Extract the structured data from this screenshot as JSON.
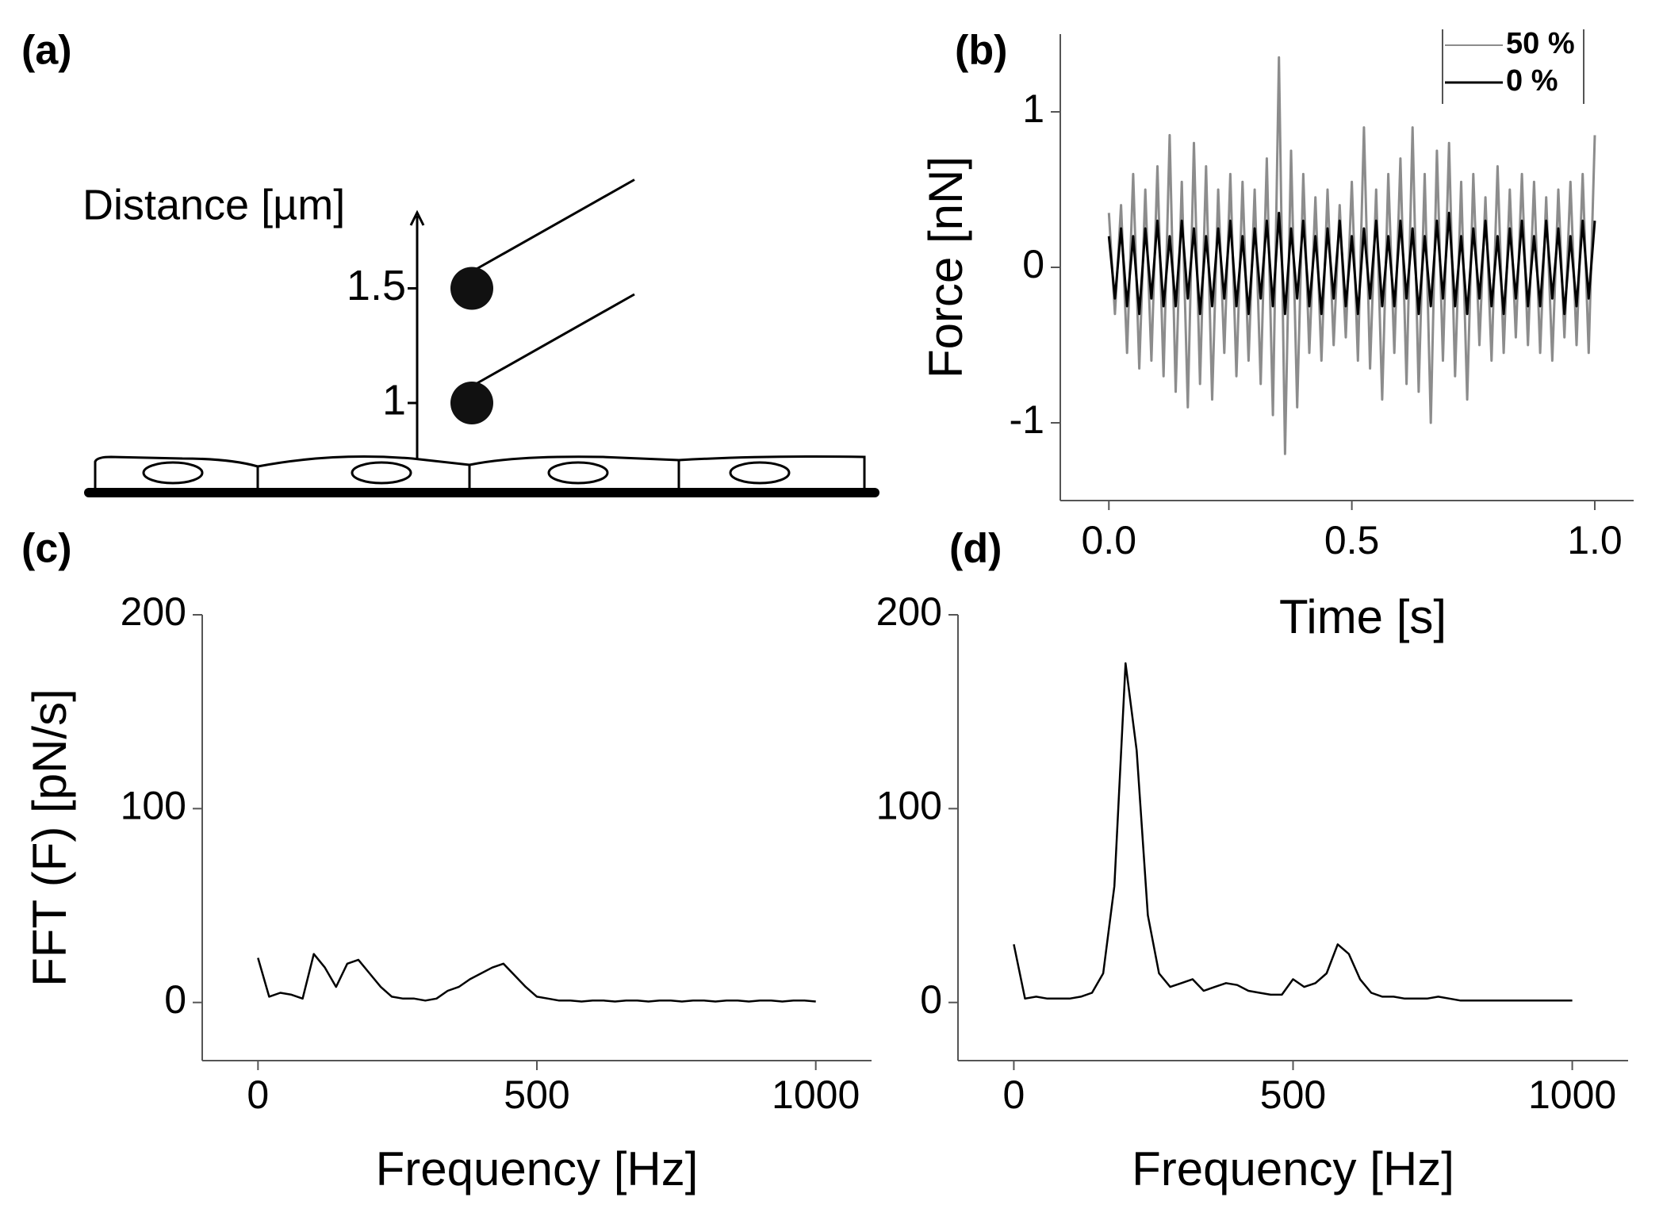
{
  "diagram": {
    "panel_label": "(a)",
    "axis_label": "Distance [µm]",
    "ticks": [
      1,
      1.5
    ]
  },
  "chart_data": [
    {
      "type": "line",
      "panel_label": "(b)",
      "xlabel": "Time [s]",
      "ylabel": "Force [nN]",
      "xlim": [
        -0.1,
        1.08
      ],
      "ylim": [
        -1.5,
        1.5
      ],
      "xticks": [
        {
          "value": 0,
          "label": "0.0"
        },
        {
          "value": 0.5,
          "label": "0.5"
        },
        {
          "value": 1,
          "label": "1.0"
        }
      ],
      "yticks": [
        -1,
        0,
        1
      ],
      "legend": "upper right",
      "x": [
        0,
        0.0125,
        0.025,
        0.0375,
        0.05,
        0.0625,
        0.075,
        0.0875,
        0.1,
        0.1125,
        0.125,
        0.1375,
        0.15,
        0.1625,
        0.175,
        0.1875,
        0.2,
        0.2125,
        0.225,
        0.2375,
        0.25,
        0.2625,
        0.275,
        0.2875,
        0.3,
        0.3125,
        0.325,
        0.3375,
        0.35,
        0.3625,
        0.375,
        0.3875,
        0.4,
        0.4125,
        0.425,
        0.4375,
        0.45,
        0.4625,
        0.475,
        0.4875,
        0.5,
        0.5125,
        0.525,
        0.5375,
        0.55,
        0.5625,
        0.575,
        0.5875,
        0.6,
        0.6125,
        0.625,
        0.6375,
        0.65,
        0.6625,
        0.675,
        0.6875,
        0.7,
        0.7125,
        0.725,
        0.7375,
        0.75,
        0.7625,
        0.775,
        0.7875,
        0.8,
        0.8125,
        0.825,
        0.8375,
        0.85,
        0.8625,
        0.875,
        0.8875,
        0.9,
        0.9125,
        0.925,
        0.9375,
        0.95,
        0.9625,
        0.975,
        0.9875,
        1
      ],
      "series": [
        {
          "name": "50 %",
          "color": "#8c8c8c",
          "values": [
            0.35,
            -0.3,
            0.4,
            -0.55,
            0.6,
            -0.65,
            0.5,
            -0.6,
            0.65,
            -0.7,
            0.85,
            -0.8,
            0.55,
            -0.9,
            0.8,
            -0.75,
            0.65,
            -0.85,
            0.5,
            -0.55,
            0.6,
            -0.7,
            0.55,
            -0.6,
            0.5,
            -0.75,
            0.7,
            -0.95,
            1.35,
            -1.2,
            0.75,
            -0.9,
            0.6,
            -0.55,
            0.45,
            -0.6,
            0.5,
            -0.5,
            0.4,
            -0.45,
            0.55,
            -0.6,
            0.9,
            -0.65,
            0.5,
            -0.85,
            0.6,
            -0.55,
            0.7,
            -0.75,
            0.9,
            -0.8,
            0.6,
            -1.0,
            0.75,
            -0.6,
            0.8,
            -0.7,
            0.55,
            -0.85,
            0.6,
            -0.5,
            0.45,
            -0.6,
            0.65,
            -0.55,
            0.5,
            -0.45,
            0.6,
            -0.5,
            0.55,
            -0.55,
            0.45,
            -0.6,
            0.5,
            -0.45,
            0.55,
            -0.5,
            0.6,
            -0.55,
            0.85
          ]
        },
        {
          "name": "0 %",
          "color": "#000000",
          "values": [
            0.2,
            -0.2,
            0.25,
            -0.25,
            0.2,
            -0.3,
            0.25,
            -0.2,
            0.3,
            -0.25,
            0.2,
            -0.25,
            0.3,
            -0.2,
            0.25,
            -0.3,
            0.2,
            -0.25,
            0.25,
            -0.2,
            0.3,
            -0.25,
            0.2,
            -0.3,
            0.25,
            -0.2,
            0.3,
            -0.25,
            0.35,
            -0.3,
            0.25,
            -0.2,
            0.3,
            -0.25,
            0.2,
            -0.3,
            0.25,
            -0.2,
            0.3,
            -0.25,
            0.2,
            -0.3,
            0.25,
            -0.2,
            0.3,
            -0.25,
            0.2,
            -0.25,
            0.3,
            -0.2,
            0.25,
            -0.3,
            0.2,
            -0.25,
            0.3,
            -0.2,
            0.35,
            -0.25,
            0.2,
            -0.3,
            0.25,
            -0.2,
            0.3,
            -0.25,
            0.2,
            -0.3,
            0.25,
            -0.2,
            0.3,
            -0.25,
            0.2,
            -0.25,
            0.3,
            -0.2,
            0.25,
            -0.3,
            0.2,
            -0.25,
            0.3,
            -0.2,
            0.3
          ]
        }
      ]
    },
    {
      "type": "line",
      "panel_label": "(c)",
      "xlabel": "Frequency [Hz]",
      "ylabel": "FFT (F) [pN/s]",
      "xlim": [
        -100,
        1100
      ],
      "ylim": [
        -30,
        200
      ],
      "xticks": [
        0,
        500,
        1000
      ],
      "yticks": [
        0,
        100,
        200
      ],
      "x": [
        0,
        20,
        40,
        60,
        80,
        100,
        120,
        140,
        160,
        180,
        200,
        220,
        240,
        260,
        280,
        300,
        320,
        340,
        360,
        380,
        400,
        420,
        440,
        460,
        480,
        500,
        520,
        540,
        560,
        580,
        600,
        620,
        640,
        660,
        680,
        700,
        720,
        740,
        760,
        780,
        800,
        820,
        840,
        860,
        880,
        900,
        920,
        940,
        960,
        980,
        1000
      ],
      "series": [
        {
          "color": "#000000",
          "values": [
            23,
            3,
            5,
            4,
            2,
            25,
            18,
            8,
            20,
            22,
            15,
            8,
            3,
            2,
            2,
            1,
            2,
            6,
            8,
            12,
            15,
            18,
            20,
            14,
            8,
            3,
            2,
            1,
            1,
            0.5,
            1,
            1,
            0.5,
            1,
            1,
            0.5,
            1,
            1,
            0.5,
            1,
            1,
            0.5,
            1,
            1,
            0.5,
            1,
            1,
            0.5,
            1,
            1,
            0.5
          ]
        }
      ]
    },
    {
      "type": "line",
      "panel_label": "(d)",
      "xlabel": "Frequency [Hz]",
      "xlim": [
        -100,
        1100
      ],
      "ylim": [
        -30,
        200
      ],
      "xticks": [
        0,
        500,
        1000
      ],
      "yticks": [
        0,
        100,
        200
      ],
      "x": [
        0,
        20,
        40,
        60,
        80,
        100,
        120,
        140,
        160,
        180,
        200,
        220,
        240,
        260,
        280,
        300,
        320,
        340,
        360,
        380,
        400,
        420,
        440,
        460,
        480,
        500,
        520,
        540,
        560,
        580,
        600,
        620,
        640,
        660,
        680,
        700,
        720,
        740,
        760,
        780,
        800,
        820,
        840,
        860,
        880,
        900,
        920,
        940,
        960,
        980,
        1000
      ],
      "series": [
        {
          "color": "#000000",
          "values": [
            30,
            2,
            3,
            2,
            2,
            2,
            3,
            5,
            15,
            60,
            175,
            130,
            45,
            15,
            8,
            10,
            12,
            6,
            8,
            10,
            9,
            6,
            5,
            4,
            4,
            12,
            8,
            10,
            15,
            30,
            25,
            12,
            5,
            3,
            3,
            2,
            2,
            2,
            3,
            2,
            1,
            1,
            1,
            1,
            1,
            1,
            1,
            1,
            1,
            1,
            1
          ]
        }
      ]
    }
  ]
}
